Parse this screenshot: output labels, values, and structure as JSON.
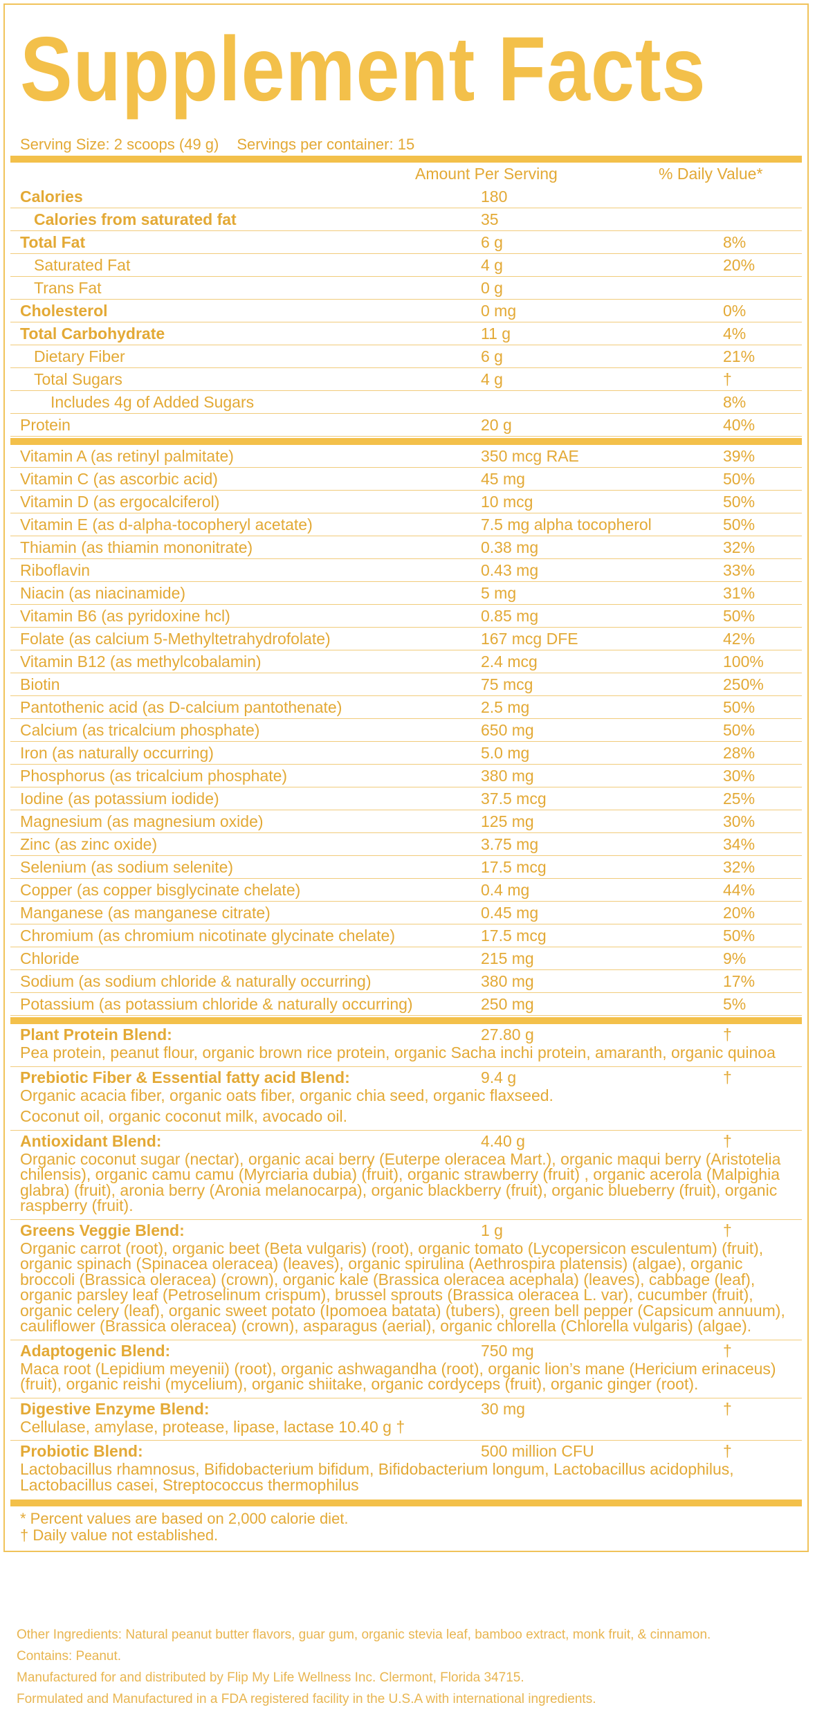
{
  "header": {
    "title": "Supplement Facts",
    "serving_size": "Serving Size: 2 scoops (49 g)",
    "servings": "Servings per container: 15"
  },
  "table": {
    "columns": [
      "Amount Per Serving",
      "% Daily Value*"
    ],
    "nutrients": [
      [
        "Calories",
        "180"
      ],
      [
        "Calories from saturated fat",
        "35"
      ],
      [
        "Total Fat",
        "6 g",
        "8%"
      ],
      [
        "Saturated Fat",
        "4 g",
        "20%"
      ],
      [
        "Trans Fat",
        "0 g"
      ],
      [
        "Cholesterol",
        "0 mg",
        "0%"
      ],
      [
        "Total Carbohydrate",
        "11 g",
        "4%"
      ],
      [
        "Dietary Fiber",
        "6 g",
        "21%"
      ],
      [
        "Total Sugars",
        "4 g",
        "†"
      ],
      [
        "Includes 4g of Added Sugars",
        "8%"
      ],
      [
        "Protein",
        "20 g",
        "40%"
      ]
    ],
    "vitamins": [
      [
        "Vitamin A (as retinyl palmitate)",
        "350 mcg RAE",
        "39%"
      ],
      [
        "Vitamin C (as ascorbic acid)",
        "45 mg",
        "50%"
      ],
      [
        "Vitamin D (as ergocalciferol)",
        "10 mcg",
        "50%"
      ],
      [
        "Vitamin E (as d-alpha-tocopheryl acetate)",
        "7.5 mg alpha tocopherol",
        "50%"
      ],
      [
        "Thiamin (as thiamin mononitrate)",
        "0.38 mg",
        "32%"
      ],
      [
        "Riboflavin",
        "0.43 mg",
        "33%"
      ],
      [
        "Niacin (as niacinamide)",
        "5 mg",
        "31%"
      ],
      [
        "Vitamin B6 (as pyridoxine hcl)",
        "0.85 mg",
        "50%"
      ],
      [
        "Folate (as calcium 5-Methyltetrahydrofolate)",
        "167 mcg DFE",
        "42%"
      ],
      [
        "Vitamin B12 (as methylcobalamin)",
        "2.4 mcg",
        "100%"
      ],
      [
        "Biotin",
        "75 mcg",
        "250%"
      ],
      [
        "Pantothenic acid (as D-calcium pantothenate)",
        "2.5 mg",
        "50%"
      ],
      [
        "Calcium (as tricalcium phosphate)",
        "650 mg",
        "50%"
      ],
      [
        "Iron (as naturally occurring)",
        "5.0 mg",
        "28%"
      ],
      [
        "Phosphorus (as tricalcium phosphate)",
        "380 mg",
        "30%"
      ],
      [
        "Iodine (as potassium iodide)",
        "37.5 mcg",
        "25%"
      ],
      [
        "Magnesium (as magnesium oxide)",
        "125 mg",
        "30%"
      ],
      [
        "Zinc (as zinc oxide)",
        "3.75 mg",
        "34%"
      ],
      [
        "Selenium (as sodium selenite)",
        "17.5 mcg",
        "32%"
      ],
      [
        "Copper (as copper bisglycinate chelate)",
        "0.4 mg",
        "44%"
      ],
      [
        "Manganese (as manganese citrate)",
        "0.45 mg",
        "20%"
      ],
      [
        "Chromium (as chromium nicotinate glycinate chelate)",
        "17.5 mcg",
        "50%"
      ],
      [
        "Chloride",
        "215 mg",
        "9%"
      ],
      [
        "Sodium (as sodium chloride & naturally occurring)",
        "380 mg",
        "17%"
      ],
      [
        "Potassium (as potassium chloride & naturally occurring)",
        "250 mg",
        "5%"
      ]
    ],
    "blends": [
      {
        "name": "Plant Protein Blend:",
        "amount": "27.80 g",
        "dv": "†",
        "description": [
          "Pea protein, peanut flour, organic brown rice protein, organic Sacha inchi protein, amaranth, organic quinoa"
        ]
      },
      {
        "name": "Prebiotic Fiber & Essential fatty acid Blend:",
        "amount": "9.4 g",
        "dv": "†",
        "description": [
          "Organic acacia fiber, organic oats fiber, organic chia seed, organic flaxseed.",
          "Coconut oil, organic coconut milk, avocado oil."
        ]
      },
      {
        "name": "Antioxidant Blend:",
        "amount": "4.40 g",
        "dv": "†",
        "description": [
          "Organic coconut sugar (nectar), organic acai berry (Euterpe oleracea Mart.), organic maqui berry (Aristotelia chilensis), organic camu camu (Myrciaria dubia) (fruit), organic strawberry (fruit) , organic acerola (Malpighia glabra) (fruit), aronia berry (Aronia melanocarpa), organic blackberry (fruit), organic blueberry (fruit), organic raspberry (fruit)."
        ]
      },
      {
        "name": "Greens Veggie Blend:",
        "amount": "1 g",
        "dv": "†",
        "description": [
          "Organic carrot (root), organic beet (Beta vulgaris) (root), organic tomato (Lycopersicon esculentum) (fruit), organic spinach (Spinacea oleracea) (leaves), organic spirulina (Aethrospira platensis) (algae), organic broccoli (Brassica oleracea) (crown), organic kale (Brassica oleracea acephala) (leaves), cabbage (leaf), organic parsley leaf (Petroselinum crispum), brussel sprouts (Brassica oleracea L. var), cucumber (fruit), organic celery (leaf), organic sweet potato (Ipomoea batata) (tubers), green bell pepper (Capsicum annuum), cauliflower (Brassica oleracea) (crown), asparagus (aerial), organic chlorella (Chlorella vulgaris) (algae)."
        ]
      },
      {
        "name": "Adaptogenic Blend:",
        "amount": "750 mg",
        "dv": "†",
        "description": [
          "Maca root (Lepidium meyenii) (root), organic ashwagandha (root), organic lion’s mane (Hericium erinaceus) (fruit), organic reishi (mycelium), organic shiitake, organic cordyceps (fruit), organic ginger (root)."
        ]
      },
      {
        "name": "Digestive Enzyme Blend:",
        "amount": "30 mg",
        "dv": "†",
        "description": [
          "Cellulase, amylase, protease, lipase, lactase 10.40 g †"
        ]
      },
      {
        "name": "Probiotic Blend:",
        "amount": "500 million CFU",
        "dv": "†",
        "description": [
          "Lactobacillus rhamnosus, Bifidobacterium bifidum, Bifidobacterium longum, Lactobacillus acidophilus, Lactobacillus casei, Streptococcus thermophilus"
        ]
      }
    ],
    "footnotes": [
      "* Percent values are based on 2,000 calorie diet.",
      "† Daily value not established."
    ]
  },
  "footer": [
    "Other Ingredients: Natural peanut butter flavors, guar gum, organic stevia leaf, bamboo extract, monk fruit, & cinnamon.",
    "Contains: Peanut.",
    "Manufactured for and distributed by Flip My Life Wellness Inc. Clermont, Florida 34715.",
    "Formulated and Manufactured in a FDA registered facility in the U.S.A with international ingredients."
  ]
}
